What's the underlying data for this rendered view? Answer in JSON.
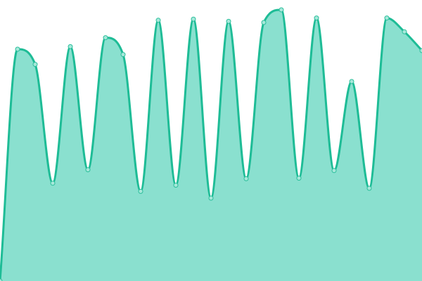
{
  "chart_data": {
    "type": "area",
    "x": [
      0,
      1,
      2,
      3,
      4,
      5,
      6,
      7,
      8,
      9,
      10,
      11,
      12,
      13,
      14,
      15,
      16,
      17,
      18,
      19,
      20,
      21,
      22,
      23,
      24
    ],
    "values": [
      0.0,
      82.5,
      77.1,
      34.8,
      83.4,
      39.6,
      86.6,
      80.6,
      31.9,
      92.8,
      34.1,
      93.2,
      29.5,
      92.4,
      36.4,
      92.0,
      96.5,
      36.6,
      93.6,
      39.3,
      71.0,
      33.0,
      93.6,
      88.7,
      82.0
    ],
    "ylim": [
      0,
      100
    ],
    "grid": false,
    "colors": {
      "line": "#1ebc96",
      "fill": "#8ae0cf",
      "marker_fill": "#a6e8da",
      "marker_stroke": "#2bbf9b"
    }
  }
}
